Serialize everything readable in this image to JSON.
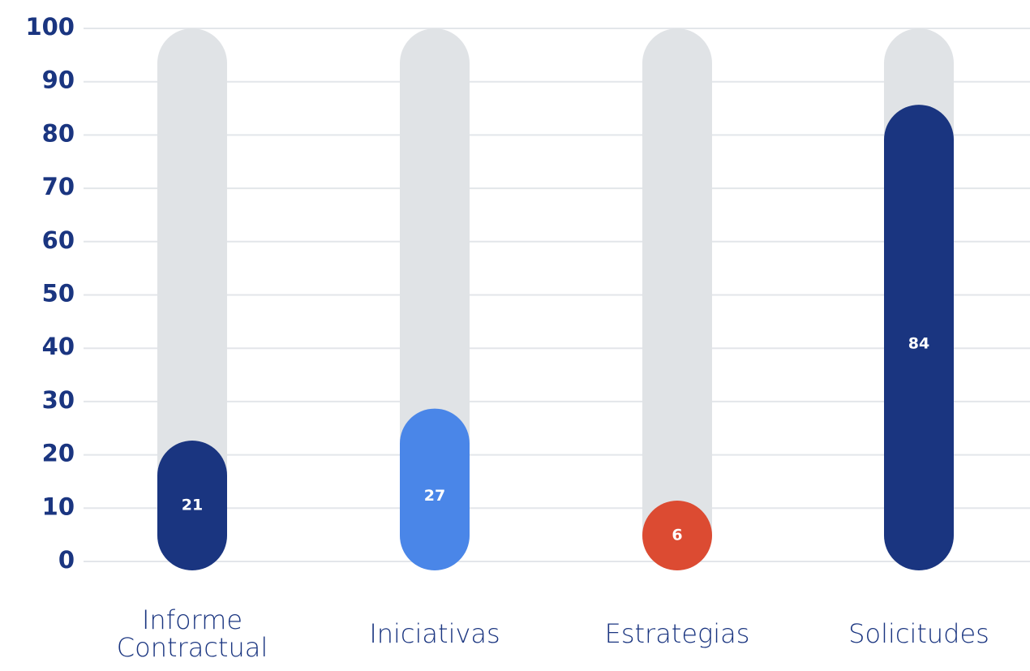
{
  "chart_data": {
    "type": "bar",
    "categories": [
      "Informe Contractual",
      "Iniciativas",
      "Estrategias",
      "Solicitudes"
    ],
    "values": [
      21,
      27,
      6,
      84
    ],
    "colors": [
      "#1a3580",
      "#4a86e8",
      "#dc4b32",
      "#1a3580"
    ],
    "track_color": "#e0e3e6",
    "ylim": [
      0,
      100
    ],
    "yticks": [
      0,
      10,
      20,
      30,
      40,
      50,
      60,
      70,
      80,
      90,
      100
    ],
    "grid": true
  }
}
